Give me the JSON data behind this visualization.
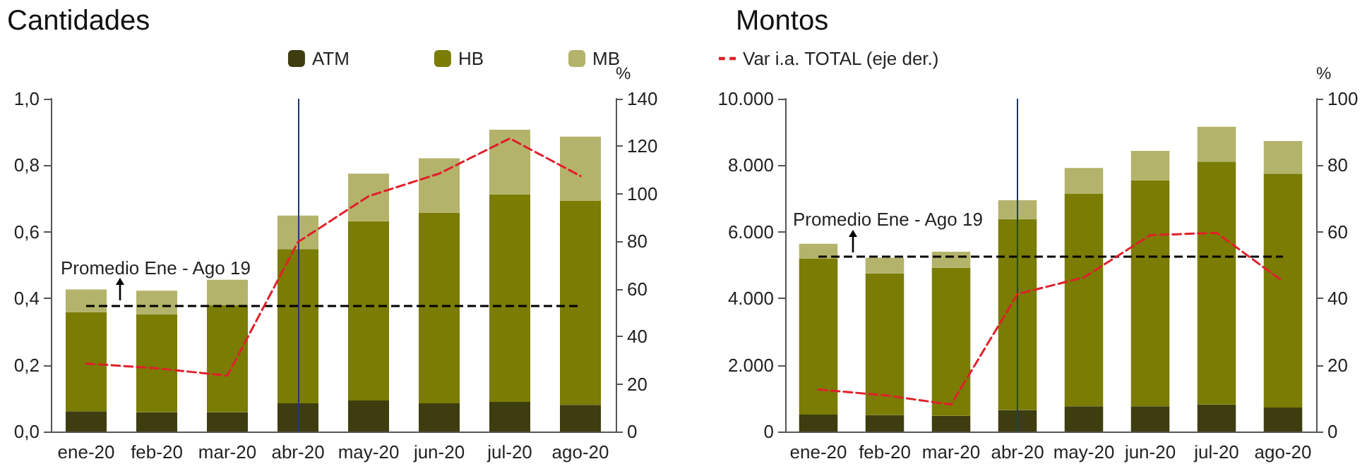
{
  "chart_data": [
    {
      "type": "bar",
      "title": "Cantidades",
      "y2label": "%",
      "stacked": true,
      "legend": "top right",
      "grid": false,
      "categories": [
        "ene-20",
        "feb-20",
        "mar-20",
        "abr-20",
        "may-20",
        "jun-20",
        "jul-20",
        "ago-20"
      ],
      "series": [
        {
          "name": "ATM",
          "color": "#3d3d10",
          "values": [
            0.061,
            0.058,
            0.058,
            0.085,
            0.093,
            0.085,
            0.089,
            0.08
          ]
        },
        {
          "name": "HB",
          "color": "#7a7c04",
          "values": [
            0.298,
            0.294,
            0.321,
            0.463,
            0.539,
            0.573,
            0.624,
            0.613
          ]
        },
        {
          "name": "MB",
          "color": "#b3b36b",
          "values": [
            0.068,
            0.071,
            0.077,
            0.101,
            0.143,
            0.163,
            0.194,
            0.193
          ]
        },
        {
          "type": "line",
          "axis": "y2",
          "color": "#e0202a",
          "line_style": "dashed",
          "marker": "none",
          "values": [
            28.6,
            26.6,
            23.5,
            79.7,
            99,
            108.5,
            123.3,
            107.5
          ]
        }
      ],
      "ylim": [
        0,
        1
      ],
      "yticks": [
        {
          "value": 0,
          "label": "0,0"
        },
        {
          "value": 0.2,
          "label": "0,2"
        },
        {
          "value": 0.4,
          "label": "0,4"
        },
        {
          "value": 0.6,
          "label": "0,6"
        },
        {
          "value": 0.8,
          "label": "0,8"
        },
        {
          "value": 1,
          "label": "1,0"
        }
      ],
      "y2lim": [
        0,
        140
      ],
      "y2ticks": [
        0,
        20,
        40,
        60,
        80,
        100,
        120,
        140
      ],
      "ref_lines": [
        {
          "axis": "y",
          "value": 0.38,
          "label": "Promedio Ene - Ago 19",
          "color": "#000000",
          "line_style": "dashed"
        },
        {
          "axis": "x",
          "value": "abr-20",
          "color": "#1f3a6e",
          "line_style": "solid"
        }
      ]
    },
    {
      "type": "bar",
      "title": "Montos",
      "y2label": "%",
      "stacked": true,
      "legend": "top left",
      "grid": false,
      "categories": [
        "ene-20",
        "feb-20",
        "mar-20",
        "abr-20",
        "may-20",
        "jun-20",
        "jul-20",
        "ago-20"
      ],
      "series": [
        {
          "color": "#3d3d10",
          "values": [
            510,
            490,
            470,
            640,
            760,
            760,
            810,
            720
          ]
        },
        {
          "color": "#7a7c04",
          "values": [
            4680,
            4260,
            4450,
            5740,
            6380,
            6790,
            7300,
            7030
          ]
        },
        {
          "color": "#b3b36b",
          "values": [
            450,
            470,
            480,
            570,
            780,
            880,
            1050,
            980
          ]
        },
        {
          "type": "line",
          "name": "Var i.a. TOTAL (eje der.)",
          "axis": "y2",
          "color": "#e0202a",
          "line_style": "dashed",
          "marker": "none",
          "values": [
            12.6,
            10.9,
            8.1,
            41.3,
            46.3,
            59,
            59.7,
            45.1
          ]
        }
      ],
      "ylim": [
        0,
        10000
      ],
      "yticks": [
        0,
        {
          "value": 2000,
          "label": "2.000"
        },
        {
          "value": 4000,
          "label": "4.000"
        },
        {
          "value": 6000,
          "label": "6.000"
        },
        {
          "value": 8000,
          "label": "8.000"
        },
        {
          "value": 10000,
          "label": "10.000"
        }
      ],
      "y2lim": [
        0,
        100
      ],
      "y2ticks": [
        0,
        20,
        40,
        60,
        80,
        100
      ],
      "ref_lines": [
        {
          "axis": "y",
          "value": 5250,
          "label": "Promedio Ene - Ago 19",
          "color": "#000000",
          "line_style": "dashed"
        },
        {
          "axis": "x",
          "value": "abr-20",
          "color": "#1f3a6e",
          "line_style": "solid"
        }
      ]
    }
  ]
}
